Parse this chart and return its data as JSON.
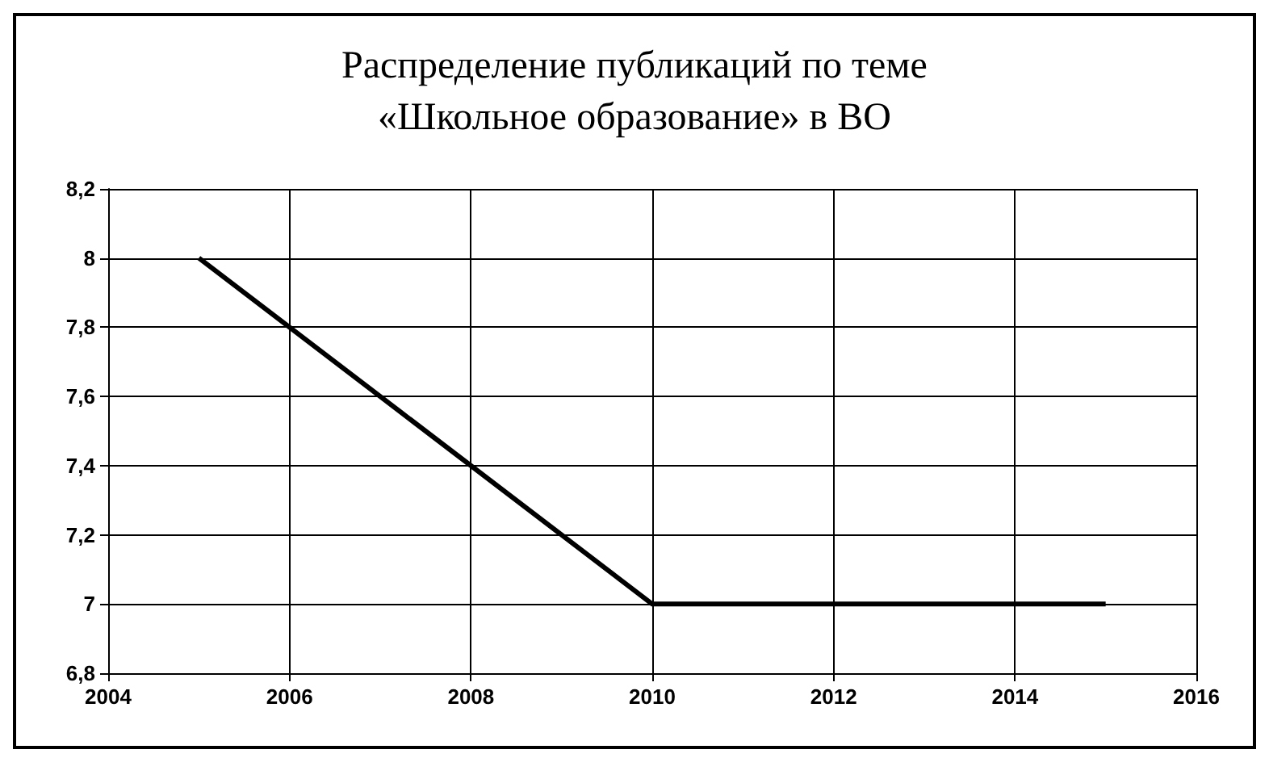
{
  "chart_data": {
    "type": "line",
    "title": "Распределение публикаций по теме\n«Школьное образование» в ВО",
    "x": [
      2005,
      2010,
      2015
    ],
    "series": [
      {
        "color": "#000000",
        "values": [
          8,
          7,
          7
        ]
      }
    ],
    "xlim": [
      2004,
      2016
    ],
    "xticks": [
      2004,
      2006,
      2008,
      2010,
      2012,
      2014,
      2016
    ],
    "ylim": [
      6.8,
      8.2
    ],
    "yticks": [
      {
        "value": 6.8,
        "label": "6,8"
      },
      7,
      {
        "value": 7.2,
        "label": "7,2"
      },
      {
        "value": 7.4,
        "label": "7,4"
      },
      {
        "value": 7.6,
        "label": "7,6"
      },
      {
        "value": 7.8,
        "label": "7,8"
      },
      8,
      {
        "value": 8.2,
        "label": "8,2"
      }
    ],
    "grid": true,
    "marker": "none",
    "line_style": "solid"
  }
}
